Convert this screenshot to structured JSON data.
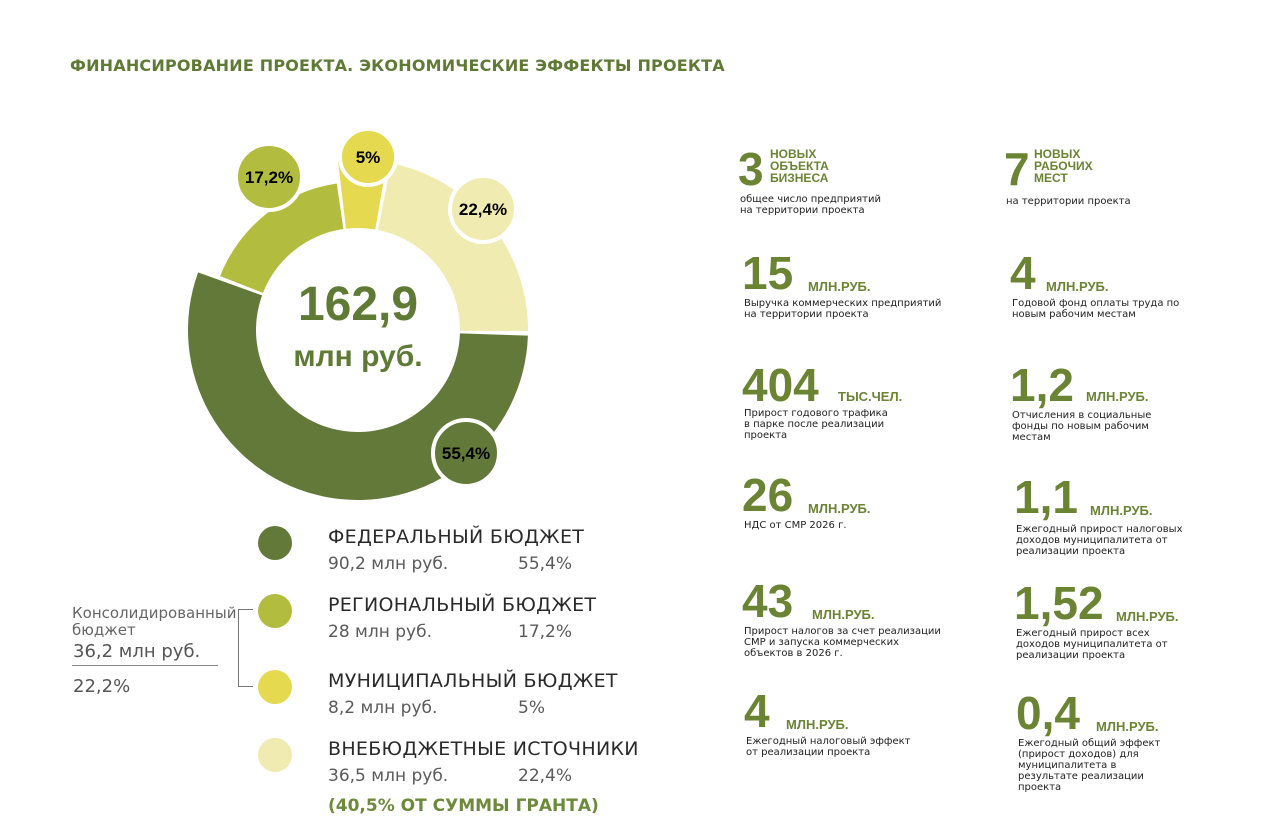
{
  "header": {
    "title": "ФИНАНСИРОВАНИЕ ПРОЕКТА. ЭКОНОМИЧЕСКИЕ ЭФФЕКТЫ ПРОЕКТА"
  },
  "chart_data": {
    "type": "pie",
    "title": "",
    "center_value": "162,9",
    "center_unit": "млн руб.",
    "categories": [
      "ФЕДЕРАЛЬНЫЙ БЮДЖЕТ",
      "РЕГИОНАЛЬНЫЙ БЮДЖЕТ",
      "МУНИЦИПАЛЬНЫЙ БЮДЖЕТ",
      "ВНЕБЮДЖЕТНЫЕ ИСТОЧНИКИ"
    ],
    "values": [
      90.2,
      28,
      8.2,
      36.5
    ],
    "percents": [
      55.4,
      17.2,
      5,
      22.4
    ],
    "slice_labels": [
      "55,4%",
      "17,2%",
      "5%",
      "22,4%"
    ],
    "amount_labels": [
      "90,2 млн руб.",
      "28 млн руб.",
      "8,2 млн руб.",
      "36,5 млн руб."
    ],
    "percent_labels": [
      "55,4%",
      "17,2%",
      "5%",
      "22,4%"
    ],
    "colors": [
      "#63793a",
      "#b2bd3f",
      "#e4d94f",
      "#f0ebb0"
    ],
    "legend_position": "bottom"
  },
  "grant_note": "(40,5% ОТ СУММЫ ГРАНТА)",
  "consolidated": {
    "label": "Консолидированный бюджет",
    "amount": "36,2 млн руб.",
    "percent": "22,2%"
  },
  "stats": [
    {
      "value": "3",
      "unit": "НОВЫХ ОБЪЕКТА БИЗНЕСА",
      "desc": "общее число предприятий на территории проекта"
    },
    {
      "value": "7",
      "unit": "НОВЫХ РАБОЧИХ МЕСТ",
      "desc": "на территории проекта"
    },
    {
      "value": "15",
      "unit": "МЛН.РУБ.",
      "desc": "Выручка коммерческих предприятий на территории проекта"
    },
    {
      "value": "4",
      "unit": "МЛН.РУБ.",
      "desc": "Годовой фонд оплаты труда по новым рабочим местам"
    },
    {
      "value": "404",
      "unit": "ТЫС.ЧЕЛ.",
      "desc": "Прирост годового трафика в парке после реализации проекта"
    },
    {
      "value": "1,2",
      "unit": "МЛН.РУБ.",
      "desc": "Отчисления в социальные фонды по новым рабочим местам"
    },
    {
      "value": "26",
      "unit": "МЛН.РУБ.",
      "desc": "НДС от СМР 2026 г."
    },
    {
      "value": "1,1",
      "unit": "МЛН.РУБ.",
      "desc": "Ежегодный прирост налоговых доходов муниципалитета от реализации проекта"
    },
    {
      "value": "43",
      "unit": "МЛН.РУБ.",
      "desc": "Прирост налогов за счет реализации СМР и запуска коммерческих объектов в 2026 г."
    },
    {
      "value": "1,52",
      "unit": "МЛН.РУБ.",
      "desc": "Ежегодный прирост всех доходов муниципалитета от реализации проекта"
    },
    {
      "value": "4",
      "unit": "МЛН.РУБ.",
      "desc": "Ежегодный налоговый эффект от реализации проекта"
    },
    {
      "value": "0,4",
      "unit": "МЛН.РУБ.",
      "desc": "Ежегодный общий эффект (прирост доходов) для муниципалитета в результате реализации проекта"
    }
  ]
}
